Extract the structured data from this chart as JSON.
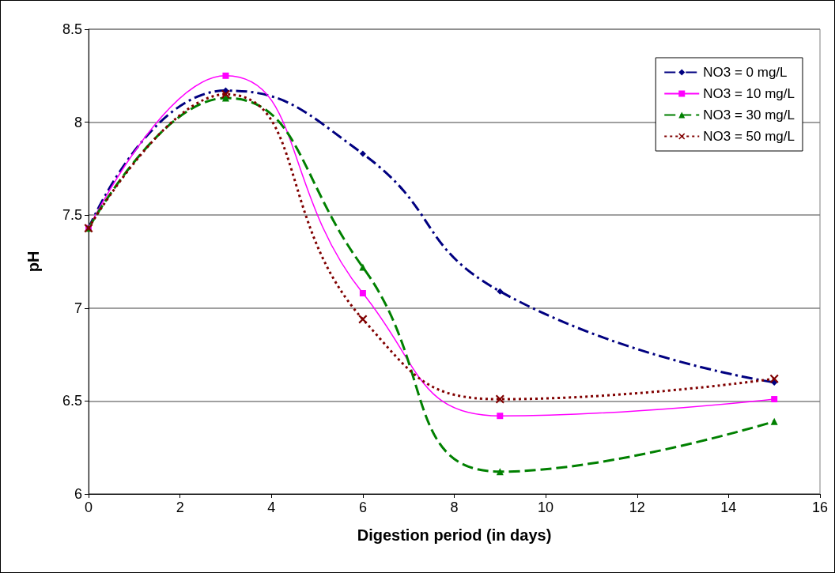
{
  "chart_data": {
    "type": "line",
    "xlabel": "Digestion period (in days)",
    "ylabel": "pH",
    "x": [
      0,
      3,
      6,
      9,
      15
    ],
    "series": [
      {
        "name": "NO3 = 0 mg/L",
        "color": "#000080",
        "marker": "diamond",
        "line_style": "dashdot",
        "values": [
          7.43,
          8.17,
          7.83,
          7.09,
          6.6
        ]
      },
      {
        "name": "NO3 = 10 mg/L",
        "color": "#ff00ff",
        "marker": "square",
        "line_style": "solid",
        "values": [
          7.43,
          8.25,
          7.08,
          6.42,
          6.51
        ]
      },
      {
        "name": "NO3 = 30 mg/L",
        "color": "#008000",
        "marker": "triangle",
        "line_style": "dashed",
        "values": [
          7.43,
          8.13,
          7.22,
          6.12,
          6.39
        ]
      },
      {
        "name": "NO3 = 50 mg/L",
        "color": "#800000",
        "marker": "cross",
        "line_style": "dotted",
        "values": [
          7.43,
          8.15,
          6.94,
          6.51,
          6.62
        ]
      }
    ],
    "xlim": [
      0,
      16
    ],
    "xticks": [
      0,
      2,
      4,
      6,
      8,
      10,
      12,
      14,
      16
    ],
    "ylim": [
      6,
      8.5
    ],
    "yticks": [
      6,
      6.5,
      7,
      7.5,
      8,
      8.5
    ],
    "grid": "y",
    "legend": "top right"
  }
}
